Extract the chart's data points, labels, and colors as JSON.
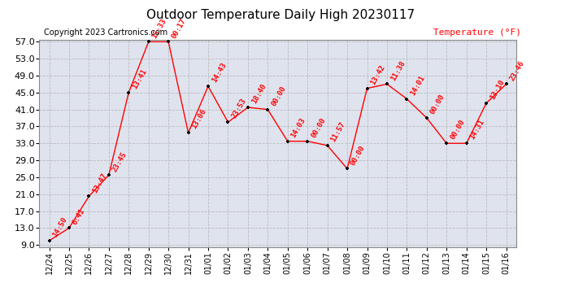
{
  "title": "Outdoor Temperature Daily High 20230117",
  "copyright": "Copyright 2023 Cartronics.com",
  "ylabel": "Temperature (°F)",
  "background_color": "#ffffff",
  "plot_bg_color": "#dfe3ee",
  "dates": [
    "12/24",
    "12/25",
    "12/26",
    "12/27",
    "12/28",
    "12/29",
    "12/30",
    "12/31",
    "01/01",
    "01/02",
    "01/03",
    "01/04",
    "01/05",
    "01/06",
    "01/07",
    "01/08",
    "01/09",
    "01/10",
    "01/11",
    "01/12",
    "01/13",
    "01/14",
    "01/15",
    "01/16"
  ],
  "temps": [
    10.0,
    13.0,
    20.5,
    25.5,
    45.0,
    57.0,
    57.0,
    35.5,
    46.5,
    38.0,
    41.5,
    41.0,
    33.5,
    33.5,
    32.5,
    27.0,
    46.0,
    47.0,
    43.5,
    39.0,
    33.0,
    33.0,
    42.5,
    47.0
  ],
  "annotations": [
    "14:50",
    "6:41",
    "13:47",
    "23:45",
    "13:41",
    "15:33",
    "00:17",
    "13:06",
    "14:43",
    "23:53",
    "18:40",
    "00:00",
    "14:03",
    "00:00",
    "11:57",
    "00:00",
    "13:42",
    "11:38",
    "14:01",
    "00:00",
    "00:00",
    "14:31",
    "13:10",
    "23:46"
  ],
  "ylim_min": 9.0,
  "ylim_max": 57.0,
  "yticks": [
    9.0,
    13.0,
    17.0,
    21.0,
    25.0,
    29.0,
    33.0,
    37.0,
    41.0,
    45.0,
    49.0,
    53.0,
    57.0
  ],
  "line_color": "red",
  "marker_color": "black",
  "annotation_color": "red",
  "title_fontsize": 11,
  "annotation_fontsize": 6.5,
  "ylabel_fontsize": 8,
  "copyright_fontsize": 7,
  "xtick_fontsize": 7,
  "ytick_fontsize": 8,
  "grid_color": "#bbbbbb",
  "spine_color": "#888888"
}
